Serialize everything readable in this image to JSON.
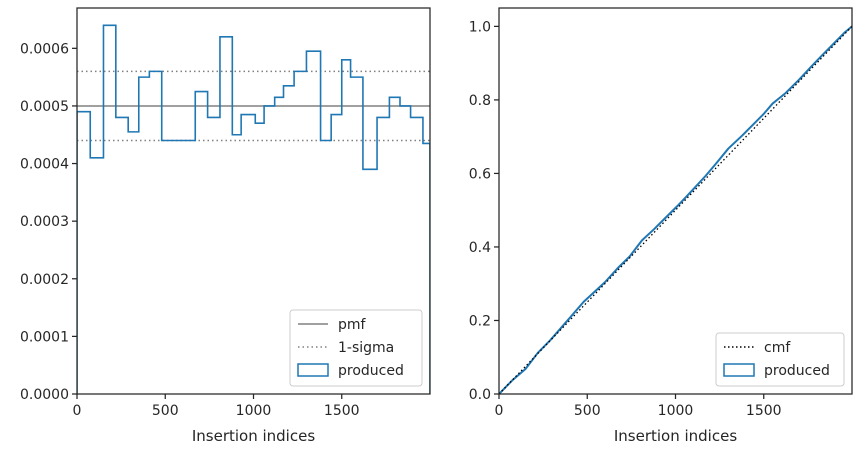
{
  "chart_data": [
    {
      "type": "histogram",
      "xlabel": "Insertion indices",
      "ylabel": "",
      "xlim": [
        0,
        2000
      ],
      "ylim": [
        0,
        0.00067
      ],
      "xticks": [
        0,
        500,
        1000,
        1500
      ],
      "xtick_labels": [
        "0",
        "500",
        "1000",
        "1500"
      ],
      "yticks": [
        0,
        0.0001,
        0.0002,
        0.0003,
        0.0004,
        0.0005,
        0.0006
      ],
      "ytick_labels": [
        "0.0000",
        "0.0001",
        "0.0002",
        "0.0003",
        "0.0004",
        "0.0005",
        "0.0006"
      ],
      "bin_edges": [
        0,
        75,
        150,
        220,
        290,
        350,
        410,
        480,
        600,
        670,
        740,
        810,
        880,
        930,
        1010,
        1060,
        1120,
        1170,
        1230,
        1300,
        1380,
        1440,
        1500,
        1550,
        1620,
        1700,
        1770,
        1830,
        1890,
        1960,
        2000
      ],
      "series": [
        {
          "name": "produced",
          "kind": "step-histogram",
          "color": "#1f77b4",
          "values": [
            0.00049,
            0.00041,
            0.00064,
            0.00048,
            0.000455,
            0.00055,
            0.00056,
            0.00044,
            0.00044,
            0.000525,
            0.00048,
            0.00062,
            0.00045,
            0.000485,
            0.00047,
            0.0005,
            0.000515,
            0.000535,
            0.00056,
            0.000595,
            0.00044,
            0.000485,
            0.00058,
            0.00055,
            0.00039,
            0.00048,
            0.000515,
            0.0005,
            0.00048,
            0.000435
          ]
        },
        {
          "name": "pmf",
          "kind": "hline",
          "color": "#808080",
          "style": "solid",
          "y": 0.0005
        },
        {
          "name": "1-sigma",
          "kind": "hlines",
          "color": "#808080",
          "style": "dotted",
          "y": [
            0.00056,
            0.00044
          ]
        }
      ],
      "legend": {
        "position": "lower right",
        "entries": [
          {
            "label": "pmf",
            "marker": "line-solid"
          },
          {
            "label": "1-sigma",
            "marker": "line-dotted"
          },
          {
            "label": "produced",
            "marker": "box"
          }
        ]
      }
    },
    {
      "type": "line",
      "xlabel": "Insertion indices",
      "ylabel": "",
      "xlim": [
        0,
        2000
      ],
      "ylim": [
        0,
        1.05
      ],
      "xticks": [
        0,
        500,
        1000,
        1500
      ],
      "xtick_labels": [
        "0",
        "500",
        "1000",
        "1500"
      ],
      "yticks": [
        0,
        0.2,
        0.4,
        0.6,
        0.8,
        1.0
      ],
      "ytick_labels": [
        "0.0",
        "0.2",
        "0.4",
        "0.6",
        "0.8",
        "1.0"
      ],
      "series": [
        {
          "name": "cmf",
          "kind": "line",
          "color": "#000000",
          "style": "dotted",
          "x": [
            0,
            2000
          ],
          "y": [
            0,
            1.0
          ]
        },
        {
          "name": "produced",
          "kind": "cumulative-step",
          "color": "#1f77b4",
          "x": [
            0,
            75,
            150,
            220,
            290,
            350,
            410,
            480,
            600,
            670,
            740,
            810,
            880,
            930,
            1010,
            1060,
            1120,
            1170,
            1230,
            1300,
            1380,
            1440,
            1500,
            1550,
            1620,
            1700,
            1770,
            1830,
            1890,
            1960,
            2000
          ],
          "y": [
            0,
            0.037,
            0.068,
            0.112,
            0.146,
            0.179,
            0.212,
            0.251,
            0.304,
            0.341,
            0.374,
            0.418,
            0.449,
            0.473,
            0.511,
            0.536,
            0.567,
            0.593,
            0.627,
            0.668,
            0.704,
            0.733,
            0.762,
            0.79,
            0.817,
            0.855,
            0.891,
            0.921,
            0.95,
            0.984,
            1.0
          ]
        }
      ],
      "legend": {
        "position": "lower right",
        "entries": [
          {
            "label": "cmf",
            "marker": "line-dotted"
          },
          {
            "label": "produced",
            "marker": "box"
          }
        ]
      }
    }
  ]
}
